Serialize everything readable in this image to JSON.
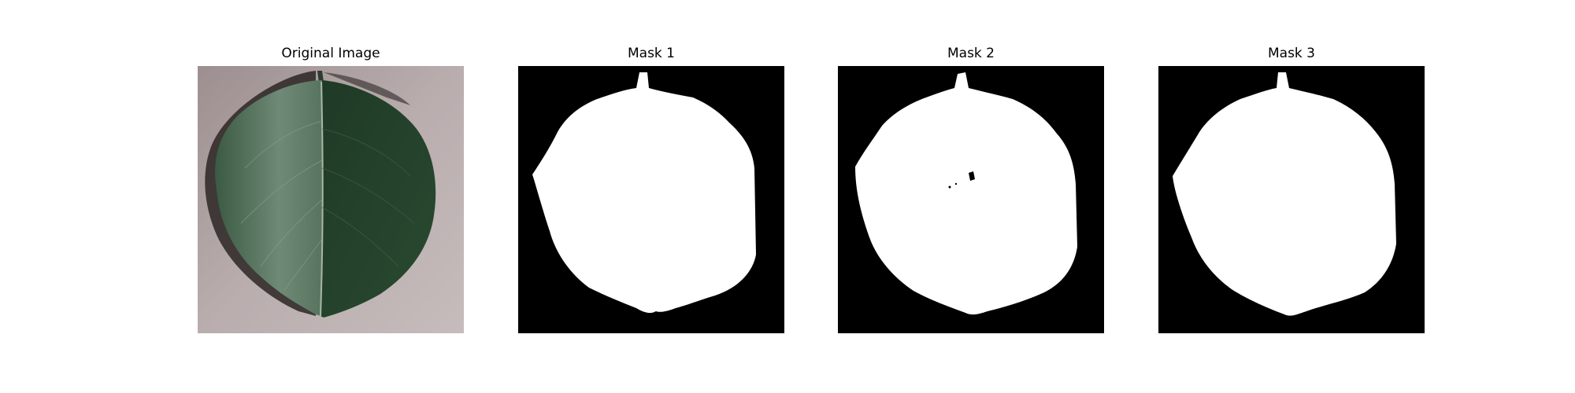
{
  "figure": {
    "panels": [
      {
        "title": "Original Image",
        "kind": "photo",
        "subject": "leaf"
      },
      {
        "title": "Mask 1",
        "kind": "binary-mask"
      },
      {
        "title": "Mask 2",
        "kind": "binary-mask"
      },
      {
        "title": "Mask 3",
        "kind": "binary-mask"
      }
    ]
  },
  "colors": {
    "background": "#ffffff",
    "mask_foreground": "#ffffff",
    "mask_background": "#000000",
    "leaf_dark": "#22402a",
    "leaf_light": "#5f7a66",
    "surface": "#b3a5a6",
    "shadow": "#2a2524"
  }
}
